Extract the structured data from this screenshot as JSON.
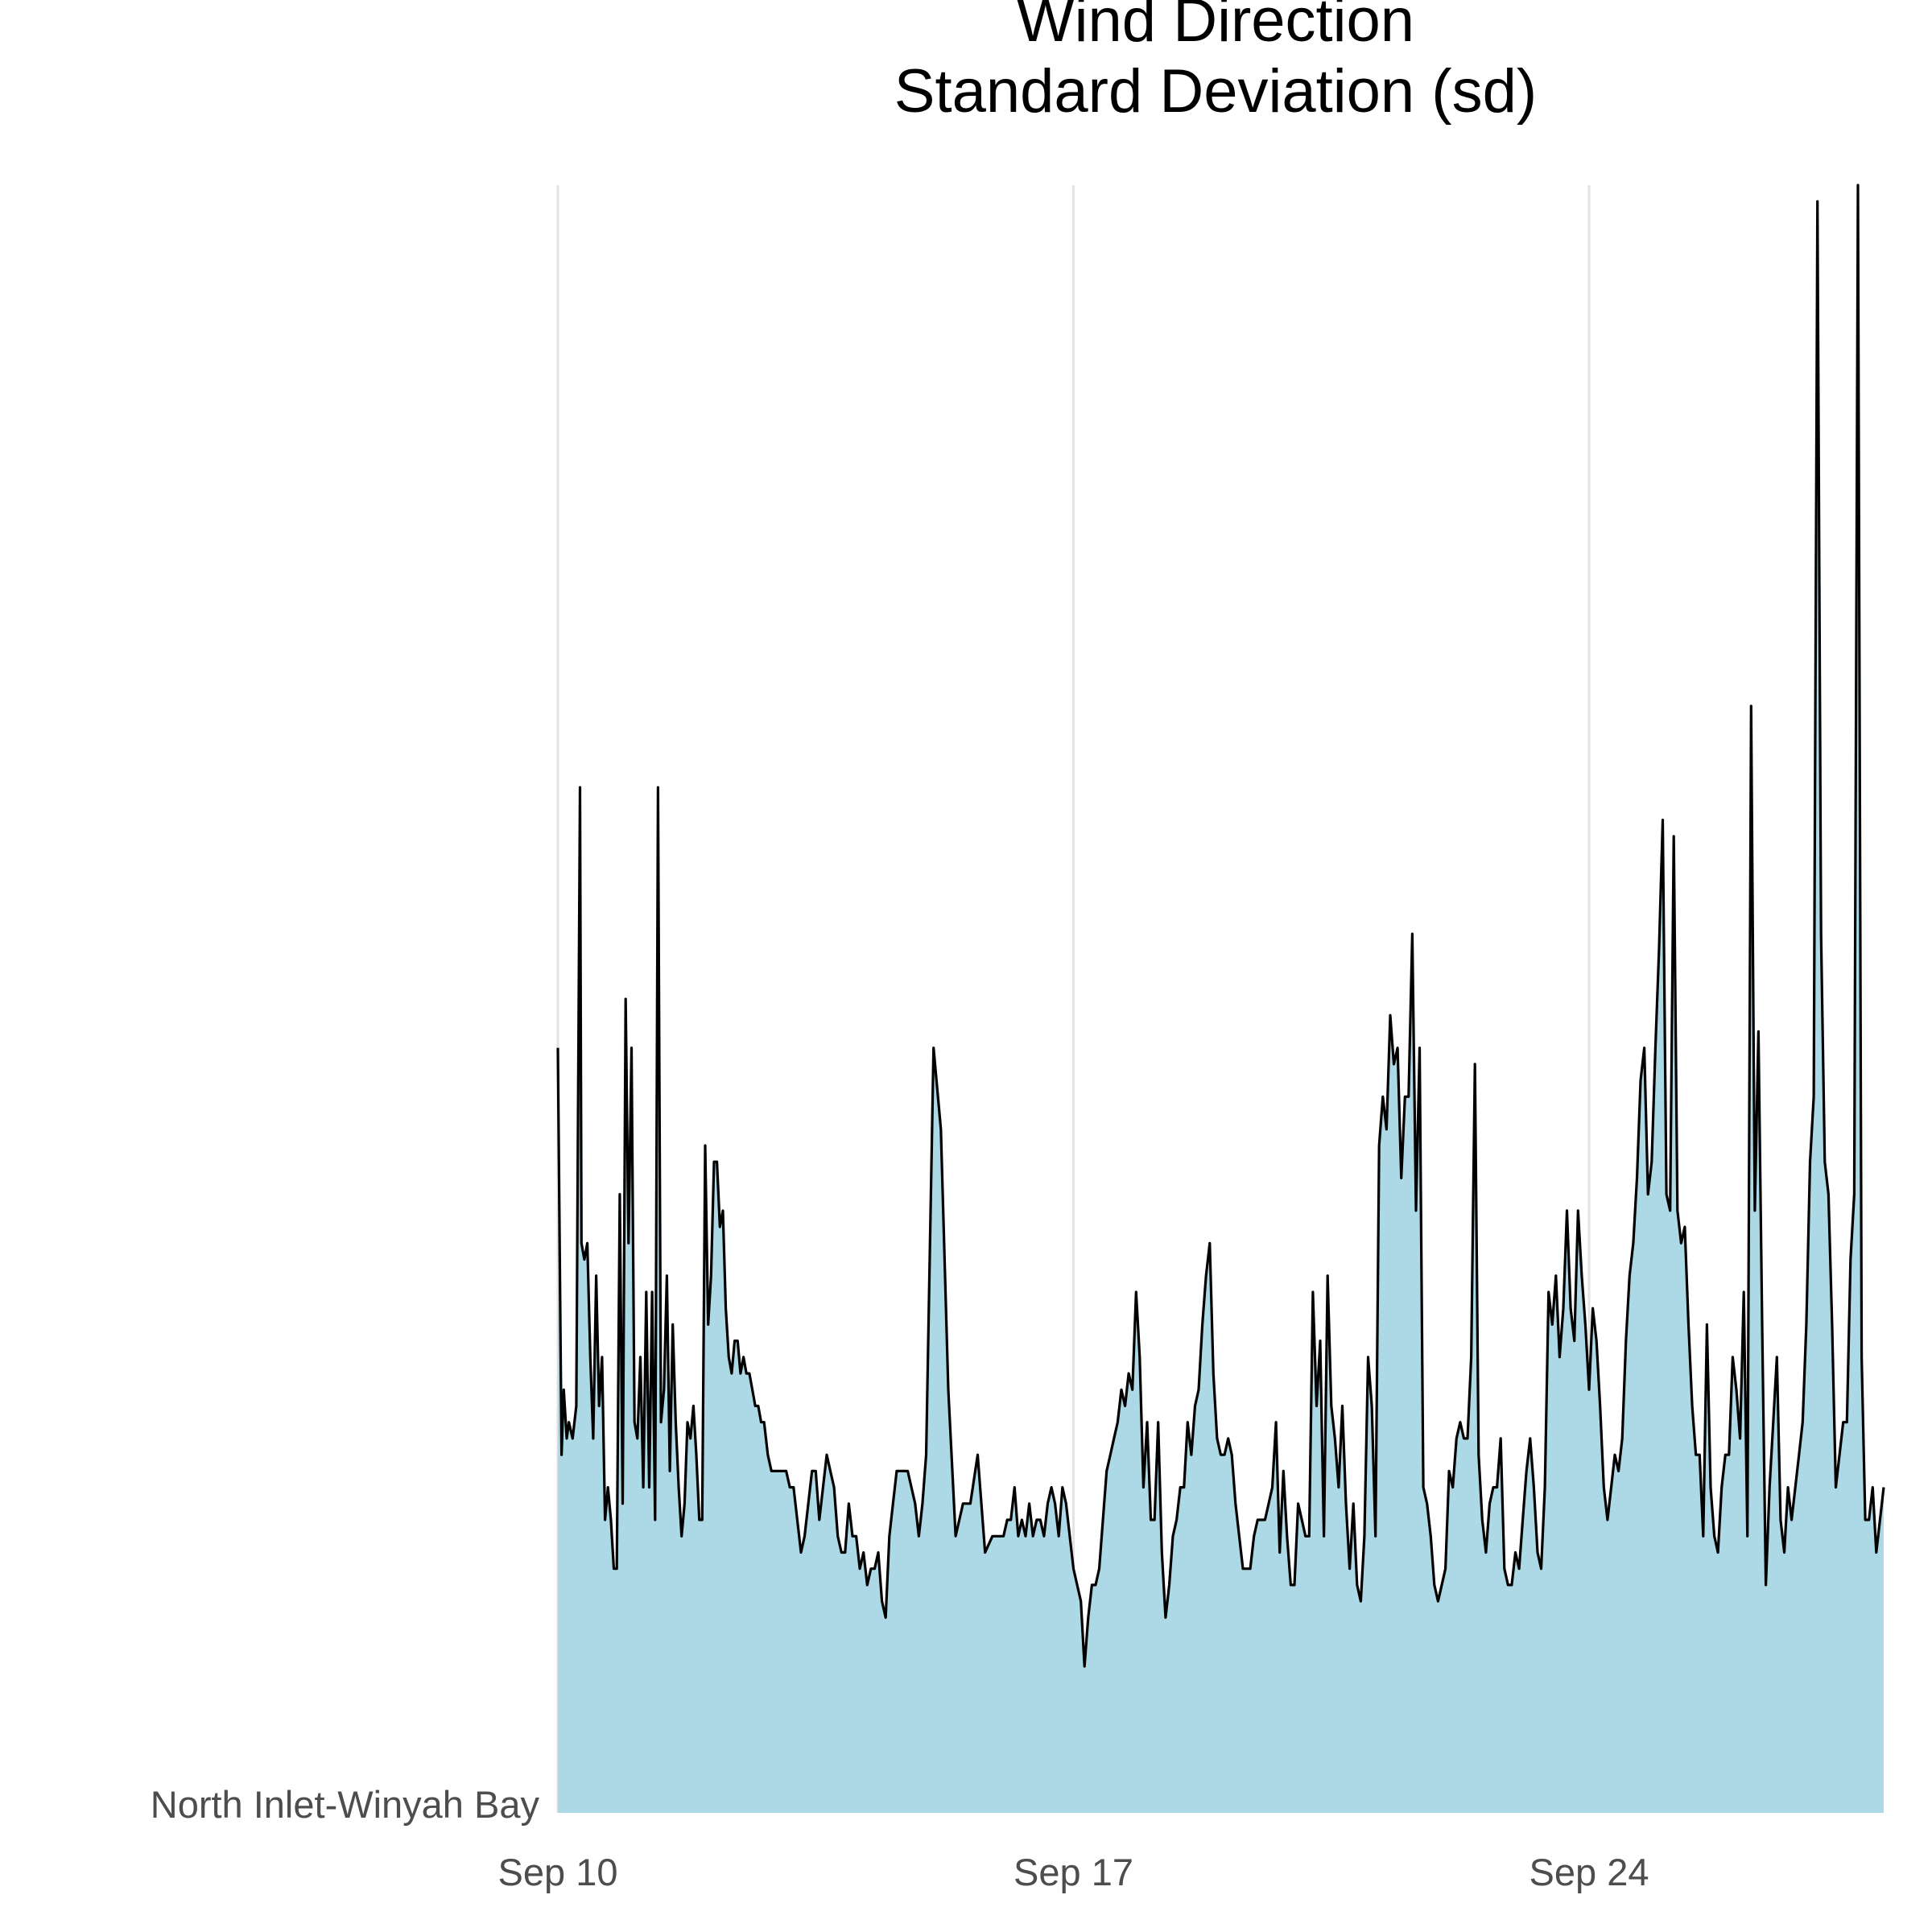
{
  "chart_data": {
    "type": "area",
    "title_lines": [
      "Wind Direction",
      "Standard Deviation (sd)"
    ],
    "xlabel": "",
    "ylabel": "",
    "y_category": "North Inlet-Winyah Bay",
    "x_ticks": [
      "Sep 10",
      "Sep 17",
      "Sep 24"
    ],
    "x_tick_days": [
      0,
      7,
      14
    ],
    "xlim_days": [
      0,
      18
    ],
    "ylim": [
      0,
      100
    ],
    "grid": "vertical major lines",
    "fill_color": "#add8e6",
    "line_color": "#000000",
    "series": [
      {
        "x_days": [
          0.0,
          0.05,
          0.08,
          0.12,
          0.15,
          0.2,
          0.25,
          0.3,
          0.32,
          0.36,
          0.4,
          0.44,
          0.48,
          0.52,
          0.56,
          0.6,
          0.64,
          0.68,
          0.72,
          0.76,
          0.8,
          0.84,
          0.88,
          0.92,
          0.96,
          1.0,
          1.04,
          1.08,
          1.12,
          1.16,
          1.2,
          1.24,
          1.28,
          1.32,
          1.36,
          1.4,
          1.44,
          1.48,
          1.52,
          1.56,
          1.6,
          1.64,
          1.68,
          1.72,
          1.76,
          1.8,
          1.84,
          1.88,
          1.92,
          1.96,
          2.0,
          2.04,
          2.08,
          2.12,
          2.16,
          2.2,
          2.24,
          2.28,
          2.32,
          2.36,
          2.4,
          2.44,
          2.48,
          2.52,
          2.56,
          2.6,
          2.64,
          2.68,
          2.72,
          2.76,
          2.8,
          2.85,
          2.9,
          2.95,
          3.0,
          3.05,
          3.1,
          3.15,
          3.2,
          3.25,
          3.3,
          3.35,
          3.4,
          3.45,
          3.5,
          3.55,
          3.6,
          3.65,
          3.7,
          3.75,
          3.8,
          3.85,
          3.9,
          3.95,
          4.0,
          4.05,
          4.1,
          4.15,
          4.2,
          4.25,
          4.3,
          4.35,
          4.4,
          4.45,
          4.5,
          4.55,
          4.6,
          4.65,
          4.7,
          4.75,
          4.8,
          4.85,
          4.9,
          4.95,
          5.0,
          5.1,
          5.2,
          5.3,
          5.4,
          5.5,
          5.6,
          5.7,
          5.8,
          5.9,
          6.0,
          6.05,
          6.1,
          6.15,
          6.2,
          6.25,
          6.3,
          6.35,
          6.4,
          6.45,
          6.5,
          6.55,
          6.6,
          6.65,
          6.7,
          6.75,
          6.8,
          6.85,
          6.9,
          6.95,
          7.0,
          7.05,
          7.1,
          7.15,
          7.2,
          7.25,
          7.3,
          7.35,
          7.4,
          7.45,
          7.5,
          7.55,
          7.6,
          7.65,
          7.7,
          7.75,
          7.8,
          7.85,
          7.9,
          7.95,
          8.0,
          8.05,
          8.1,
          8.15,
          8.2,
          8.25,
          8.3,
          8.35,
          8.4,
          8.45,
          8.5,
          8.55,
          8.6,
          8.65,
          8.7,
          8.75,
          8.8,
          8.85,
          8.9,
          8.95,
          9.0,
          9.05,
          9.1,
          9.15,
          9.2,
          9.25,
          9.3,
          9.35,
          9.4,
          9.45,
          9.5,
          9.55,
          9.6,
          9.65,
          9.7,
          9.75,
          9.8,
          9.85,
          9.9,
          9.95,
          10.0,
          10.05,
          10.1,
          10.15,
          10.2,
          10.25,
          10.3,
          10.35,
          10.4,
          10.45,
          10.5,
          10.55,
          10.6,
          10.65,
          10.7,
          10.75,
          10.8,
          10.85,
          10.9,
          10.95,
          11.0,
          11.05,
          11.1,
          11.15,
          11.2,
          11.25,
          11.3,
          11.35,
          11.4,
          11.45,
          11.5,
          11.55,
          11.6,
          11.65,
          11.7,
          11.75,
          11.8,
          11.85,
          11.9,
          11.95,
          12.0,
          12.05,
          12.1,
          12.15,
          12.2,
          12.25,
          12.3,
          12.35,
          12.4,
          12.45,
          12.5,
          12.55,
          12.6,
          12.65,
          12.7,
          12.75,
          12.8,
          12.85,
          12.9,
          12.95,
          13.0,
          13.05,
          13.1,
          13.15,
          13.2,
          13.25,
          13.3,
          13.35,
          13.4,
          13.45,
          13.5,
          13.55,
          13.6,
          13.65,
          13.7,
          13.75,
          13.8,
          13.85,
          13.9,
          13.95,
          14.0,
          14.05,
          14.1,
          14.15,
          14.2,
          14.25,
          14.3,
          14.35,
          14.4,
          14.45,
          14.5,
          14.55,
          14.6,
          14.65,
          14.7,
          14.75,
          14.8,
          14.85,
          14.9,
          14.95,
          15.0,
          15.05,
          15.1,
          15.15,
          15.2,
          15.25,
          15.3,
          15.35,
          15.4,
          15.45,
          15.5,
          15.55,
          15.6,
          15.65,
          15.7,
          15.75,
          15.8,
          15.85,
          15.9,
          15.95,
          16.0,
          16.05,
          16.1,
          16.15,
          16.2,
          16.25,
          16.3,
          16.35,
          16.4,
          16.45,
          16.5,
          16.55,
          16.6,
          16.65,
          16.7,
          16.75,
          16.8,
          16.85,
          16.9,
          16.95,
          17.0,
          17.05,
          17.1,
          17.15,
          17.2,
          17.25,
          17.3,
          17.35,
          17.4,
          17.45,
          17.5,
          17.55,
          17.6,
          17.65,
          17.7,
          17.75,
          17.8,
          17.85,
          17.9,
          17.95,
          18.0
        ],
        "y": [
          47,
          22,
          26,
          23,
          24,
          23,
          25,
          63,
          35,
          34,
          35,
          28,
          23,
          33,
          25,
          28,
          18,
          20,
          18,
          15,
          15,
          38,
          19,
          50,
          35,
          47,
          24,
          23,
          28,
          20,
          32,
          20,
          32,
          18,
          63,
          24,
          26,
          33,
          21,
          30,
          24,
          20,
          17,
          19,
          24,
          23,
          25,
          22,
          18,
          18,
          41,
          30,
          33,
          40,
          40,
          36,
          37,
          31,
          28,
          27,
          29,
          29,
          27,
          28,
          27,
          27,
          26,
          25,
          25,
          24,
          24,
          22,
          21,
          21,
          21,
          21,
          21,
          20,
          20,
          18,
          16,
          17,
          19,
          21,
          21,
          18,
          20,
          22,
          21,
          20,
          17,
          16,
          16,
          19,
          17,
          17,
          15,
          16,
          14,
          15,
          15,
          16,
          13,
          12,
          17,
          19,
          21,
          21,
          21,
          21,
          20,
          19,
          17,
          19,
          22,
          47,
          42,
          26,
          17,
          19,
          19,
          22,
          16,
          17,
          17,
          17,
          18,
          18,
          20,
          17,
          18,
          17,
          19,
          17,
          18,
          18,
          17,
          19,
          20,
          19,
          17,
          20,
          19,
          17,
          15,
          14,
          13,
          9,
          12,
          14,
          14,
          15,
          18,
          21,
          22,
          23,
          24,
          26,
          25,
          27,
          26,
          32,
          28,
          20,
          24,
          18,
          18,
          24,
          16,
          12,
          14,
          17,
          18,
          20,
          20,
          24,
          22,
          25,
          26,
          30,
          33,
          35,
          27,
          23,
          22,
          22,
          23,
          22,
          19,
          17,
          15,
          15,
          15,
          17,
          18,
          18,
          18,
          19,
          20,
          24,
          16,
          21,
          17,
          14,
          14,
          19,
          18,
          17,
          17,
          32,
          25,
          29,
          17,
          33,
          25,
          23,
          20,
          25,
          19,
          15,
          19,
          14,
          13,
          17,
          28,
          25,
          17,
          41,
          44,
          42,
          49,
          46,
          47,
          39,
          44,
          44,
          54,
          37,
          47,
          20,
          19,
          17,
          14,
          13,
          14,
          15,
          21,
          20,
          23,
          24,
          23,
          23,
          28,
          46,
          22,
          18,
          16,
          19,
          20,
          20,
          23,
          15,
          14,
          14,
          16,
          15,
          18,
          21,
          23,
          20,
          16,
          15,
          20,
          32,
          30,
          33,
          28,
          31,
          37,
          31,
          29,
          37,
          33,
          30,
          26,
          31,
          29,
          25,
          20,
          18,
          20,
          22,
          21,
          23,
          29,
          33,
          35,
          39,
          45,
          47,
          38,
          40,
          47,
          53,
          61,
          38,
          37,
          60,
          37,
          35,
          36,
          30,
          25,
          22,
          22,
          17,
          30,
          20,
          17,
          16,
          20,
          22,
          22,
          28,
          26,
          23,
          32,
          17,
          68,
          37,
          48,
          30,
          14,
          20,
          24,
          28,
          18,
          16,
          20,
          18,
          20,
          22,
          24,
          30,
          40,
          44,
          99,
          54,
          40,
          38,
          30,
          20,
          22,
          24,
          24,
          34,
          38,
          100,
          28,
          18,
          18,
          20,
          16,
          18,
          20
        ]
      }
    ]
  }
}
